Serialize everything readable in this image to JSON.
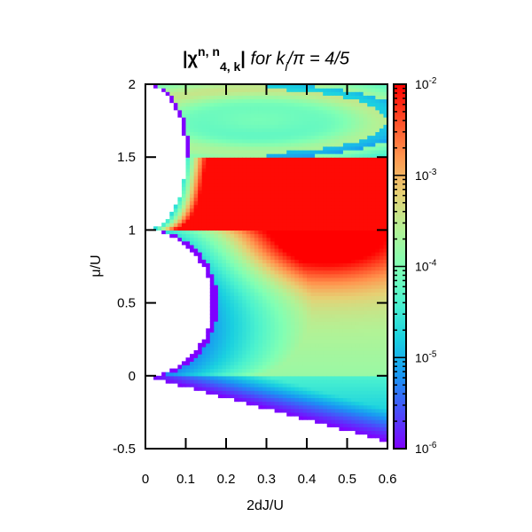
{
  "chart_data": {
    "type": "heatmap",
    "title": {
      "bold_main": "|χ",
      "bold_sup": "n, n",
      "bold_sub": "4, k",
      "bold_close": "|",
      "italic": " for k",
      "italic_sub": "i",
      "italic_rest": "/π = 4/5"
    },
    "xlabel": "2dJ/U",
    "ylabel": "μ/U",
    "xlim": [
      0,
      0.6
    ],
    "ylim": [
      -0.5,
      2
    ],
    "xticks": [
      0,
      0.1,
      0.2,
      0.3,
      0.4,
      0.5,
      0.6
    ],
    "xtick_labels": [
      "0",
      "0.1",
      "0.2",
      "0.3",
      "0.4",
      "0.5",
      "0.6"
    ],
    "yticks": [
      -0.5,
      0,
      0.5,
      1,
      1.5,
      2
    ],
    "ytick_labels": [
      "-0.5",
      "0",
      "0.5",
      "1",
      "1.5",
      "2"
    ],
    "colorbar": {
      "scale": "log",
      "range": [
        1e-06,
        0.01
      ],
      "ticks": [
        {
          "value": 0.01,
          "base": "10",
          "exp": "-2"
        },
        {
          "value": 0.001,
          "base": "10",
          "exp": "-3"
        },
        {
          "value": 0.0001,
          "base": "10",
          "exp": "-4"
        },
        {
          "value": 1e-05,
          "base": "10",
          "exp": "-5"
        },
        {
          "value": 1e-06,
          "base": "10",
          "exp": "-6"
        }
      ],
      "colormap": [
        "#7f00ff",
        "#4a4dfb",
        "#1996f3",
        "#1ad0e0",
        "#4cf2ce",
        "#80ffb4",
        "#b2f296",
        "#e6d074",
        "#ff964f",
        "#ff4d27",
        "#ff0000"
      ]
    },
    "empty_region": "Mott insulator lobes (white) near 2dJ/U = 0 centred at μ/U = 0.5 and 1.5",
    "notable_features": {
      "max_region": "red maximum near 2dJ/U ≈ 0.3, μ/U ≈ 1.3",
      "discontinuity": "sharp horizontal boundary at μ/U = 1.5"
    }
  }
}
